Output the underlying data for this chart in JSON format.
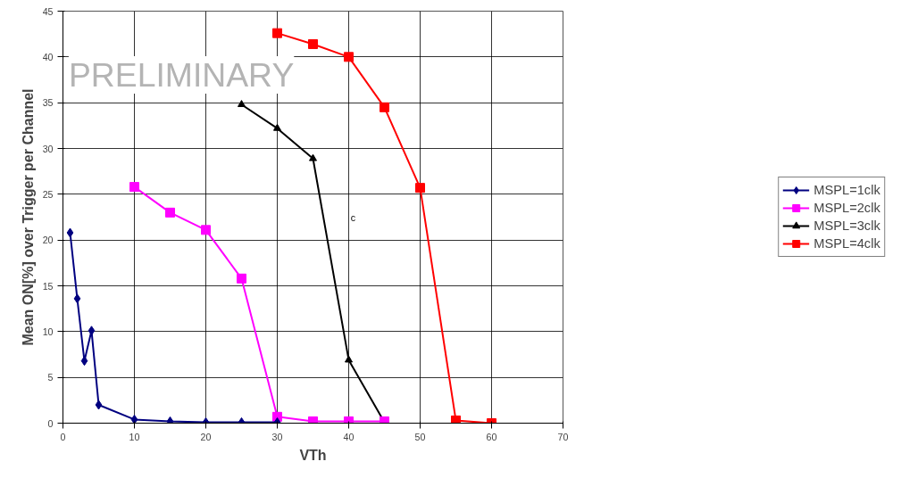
{
  "chart_data": {
    "type": "line",
    "xlabel": "VTh",
    "ylabel": "Mean ON[%] over Trigger per Channel",
    "xlim": [
      0,
      70
    ],
    "xticks": [
      0,
      10,
      20,
      30,
      40,
      50,
      60,
      70
    ],
    "ylim": [
      0,
      45
    ],
    "yticks": [
      0,
      5,
      10,
      15,
      20,
      25,
      30,
      35,
      40,
      45
    ],
    "grid": true,
    "legend": "right",
    "line_style": "solid",
    "series": [
      {
        "name": "MSPL=1clk",
        "color": "#000080",
        "marker": "diamond",
        "x": [
          1,
          2,
          3,
          4,
          5,
          10,
          15,
          20,
          25,
          30
        ],
        "values": [
          20.8,
          13.6,
          6.8,
          10.1,
          2.0,
          0.4,
          0.2,
          0.1,
          0.1,
          0.1
        ]
      },
      {
        "name": "MSPL=2clk",
        "color": "#ff00ff",
        "marker": "square",
        "x": [
          10,
          15,
          20,
          25,
          30,
          35,
          40,
          45
        ],
        "values": [
          25.8,
          23.0,
          21.1,
          15.8,
          0.7,
          0.2,
          0.2,
          0.2
        ]
      },
      {
        "name": "MSPL=3clk",
        "color": "#000000",
        "marker": "triangle",
        "x": [
          25,
          30,
          35,
          40,
          45
        ],
        "values": [
          34.8,
          32.2,
          28.9,
          6.9,
          0.1
        ]
      },
      {
        "name": "MSPL=4clk",
        "color": "#ff0000",
        "marker": "square",
        "x": [
          30,
          35,
          40,
          45,
          50,
          55,
          60
        ],
        "values": [
          42.6,
          41.4,
          40.0,
          34.5,
          25.7,
          0.3,
          0.0
        ]
      }
    ],
    "annotations": [
      "c",
      "PRELIMINARY"
    ]
  }
}
